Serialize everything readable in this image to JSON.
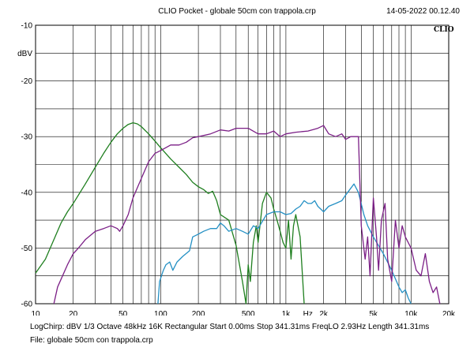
{
  "header": {
    "title": "CLIO Pocket - globale 50cm con trappola.crp",
    "timestamp": "14-05-2022 00.12.40"
  },
  "footer": {
    "params": "LogChirp:  dBV   1/3 Octave   48kHz   16K   Rectangular   Start 0.00ms    Stop 341.31ms    FreqLO 2.93Hz    Length 341.31ms",
    "file": "File: globale 50cm con trappola.crp"
  },
  "chart_data": {
    "type": "line",
    "title": "CLIO Pocket - globale 50cm con trappola.crp",
    "ylabel": "dBV",
    "xlabel": "Hz",
    "x_scale": "log",
    "xlim": [
      10,
      20000
    ],
    "ylim": [
      -60,
      -10
    ],
    "grid": true,
    "brand_label": "CLIO",
    "x_ticks": [
      {
        "value": 10,
        "label": "10"
      },
      {
        "value": 20,
        "label": "20"
      },
      {
        "value": 50,
        "label": "50"
      },
      {
        "value": 100,
        "label": "100"
      },
      {
        "value": 200,
        "label": "200"
      },
      {
        "value": 500,
        "label": "500"
      },
      {
        "value": 1000,
        "label": "1k"
      },
      {
        "value": 1500,
        "label": "Hz"
      },
      {
        "value": 2000,
        "label": "2k"
      },
      {
        "value": 5000,
        "label": "5k"
      },
      {
        "value": 10000,
        "label": "10k"
      },
      {
        "value": 20000,
        "label": "20k"
      }
    ],
    "y_ticks": [
      {
        "value": -10,
        "label": "-10"
      },
      {
        "value": -15,
        "label": "dBV"
      },
      {
        "value": -20,
        "label": "-20"
      },
      {
        "value": -30,
        "label": "-30"
      },
      {
        "value": -40,
        "label": "-40"
      },
      {
        "value": -50,
        "label": "-50"
      },
      {
        "value": -60,
        "label": "-60"
      }
    ],
    "series": [
      {
        "color": "#1f7f1f",
        "points": [
          [
            10,
            -54.5
          ],
          [
            12,
            -52
          ],
          [
            14,
            -48.5
          ],
          [
            16,
            -45.5
          ],
          [
            18,
            -43.5
          ],
          [
            20,
            -42
          ],
          [
            25,
            -38.5
          ],
          [
            30,
            -35.5
          ],
          [
            35,
            -33
          ],
          [
            40,
            -31
          ],
          [
            45,
            -29.5
          ],
          [
            50,
            -28.5
          ],
          [
            55,
            -27.8
          ],
          [
            60,
            -27.5
          ],
          [
            65,
            -27.7
          ],
          [
            70,
            -28.2
          ],
          [
            80,
            -29.5
          ],
          [
            90,
            -30.8
          ],
          [
            100,
            -32
          ],
          [
            120,
            -34
          ],
          [
            140,
            -35.5
          ],
          [
            160,
            -36.8
          ],
          [
            180,
            -38.2
          ],
          [
            200,
            -39
          ],
          [
            220,
            -39.5
          ],
          [
            240,
            -40.2
          ],
          [
            260,
            -39.8
          ],
          [
            280,
            -41.5
          ],
          [
            300,
            -44
          ],
          [
            350,
            -45
          ],
          [
            400,
            -49.5
          ],
          [
            450,
            -56
          ],
          [
            480,
            -60
          ],
          [
            500,
            -53
          ],
          [
            520,
            -56
          ],
          [
            550,
            -49
          ],
          [
            580,
            -46
          ],
          [
            600,
            -49
          ],
          [
            650,
            -42
          ],
          [
            700,
            -40
          ],
          [
            760,
            -41
          ],
          [
            800,
            -43
          ],
          [
            850,
            -45
          ],
          [
            900,
            -47
          ],
          [
            950,
            -49
          ],
          [
            1000,
            -50
          ],
          [
            1050,
            -45
          ],
          [
            1100,
            -52
          ],
          [
            1150,
            -46
          ],
          [
            1200,
            -44
          ],
          [
            1300,
            -48
          ],
          [
            1400,
            -60
          ]
        ]
      },
      {
        "color": "#2490c4",
        "points": [
          [
            95,
            -60
          ],
          [
            98,
            -56
          ],
          [
            105,
            -54
          ],
          [
            110,
            -53
          ],
          [
            118,
            -52.5
          ],
          [
            125,
            -54
          ],
          [
            135,
            -52.5
          ],
          [
            150,
            -51.5
          ],
          [
            170,
            -50.5
          ],
          [
            180,
            -48
          ],
          [
            200,
            -47.5
          ],
          [
            220,
            -47
          ],
          [
            250,
            -46.5
          ],
          [
            280,
            -46.5
          ],
          [
            300,
            -45.5
          ],
          [
            320,
            -46
          ],
          [
            350,
            -47
          ],
          [
            400,
            -46.5
          ],
          [
            450,
            -47
          ],
          [
            500,
            -47.5
          ],
          [
            550,
            -46
          ],
          [
            600,
            -46.5
          ],
          [
            700,
            -44
          ],
          [
            800,
            -43.5
          ],
          [
            900,
            -43.5
          ],
          [
            1000,
            -44
          ],
          [
            1100,
            -43.8
          ],
          [
            1200,
            -43
          ],
          [
            1300,
            -42.5
          ],
          [
            1400,
            -41.5
          ],
          [
            1500,
            -42
          ],
          [
            1600,
            -42
          ],
          [
            1700,
            -41.5
          ],
          [
            1800,
            -42.5
          ],
          [
            1900,
            -43
          ],
          [
            2000,
            -43.5
          ],
          [
            2200,
            -42.5
          ],
          [
            2500,
            -42
          ],
          [
            2800,
            -41.5
          ],
          [
            3000,
            -40.5
          ],
          [
            3500,
            -38.5
          ],
          [
            3800,
            -40
          ],
          [
            4200,
            -44
          ],
          [
            4500,
            -46
          ],
          [
            5000,
            -48
          ],
          [
            6000,
            -51
          ],
          [
            7000,
            -54
          ],
          [
            8000,
            -57
          ],
          [
            8500,
            -58
          ],
          [
            9000,
            -57.5
          ],
          [
            9500,
            -59
          ],
          [
            10000,
            -60
          ]
        ]
      },
      {
        "color": "#7b1f86",
        "points": [
          [
            14,
            -60
          ],
          [
            15,
            -57
          ],
          [
            18,
            -53
          ],
          [
            20,
            -51
          ],
          [
            22,
            -50
          ],
          [
            25,
            -48.5
          ],
          [
            30,
            -47
          ],
          [
            35,
            -46.5
          ],
          [
            40,
            -46
          ],
          [
            45,
            -46.5
          ],
          [
            47,
            -47
          ],
          [
            50,
            -46
          ],
          [
            55,
            -44
          ],
          [
            60,
            -41
          ],
          [
            70,
            -37.5
          ],
          [
            80,
            -34.5
          ],
          [
            90,
            -33
          ],
          [
            100,
            -32.5
          ],
          [
            120,
            -31.5
          ],
          [
            140,
            -31.5
          ],
          [
            160,
            -31
          ],
          [
            180,
            -30.2
          ],
          [
            200,
            -30
          ],
          [
            250,
            -29.5
          ],
          [
            300,
            -28.8
          ],
          [
            350,
            -29
          ],
          [
            400,
            -28.5
          ],
          [
            500,
            -28.5
          ],
          [
            600,
            -29.5
          ],
          [
            700,
            -29.5
          ],
          [
            800,
            -29
          ],
          [
            900,
            -30
          ],
          [
            1000,
            -29.5
          ],
          [
            1200,
            -29.2
          ],
          [
            1500,
            -29
          ],
          [
            1800,
            -28.5
          ],
          [
            2000,
            -28
          ],
          [
            2200,
            -29.5
          ],
          [
            2500,
            -30
          ],
          [
            2800,
            -29.5
          ],
          [
            3000,
            -30.5
          ],
          [
            3300,
            -30
          ],
          [
            3600,
            -30
          ],
          [
            3800,
            -30
          ],
          [
            4000,
            -46
          ],
          [
            4300,
            -52
          ],
          [
            4500,
            -48
          ],
          [
            4700,
            -55
          ],
          [
            5000,
            -41
          ],
          [
            5300,
            -48
          ],
          [
            5500,
            -54
          ],
          [
            5800,
            -45
          ],
          [
            6200,
            -42
          ],
          [
            6500,
            -52
          ],
          [
            7000,
            -56
          ],
          [
            7500,
            -45
          ],
          [
            8000,
            -50
          ],
          [
            8500,
            -46
          ],
          [
            9000,
            -48
          ],
          [
            10000,
            -50
          ],
          [
            11000,
            -54
          ],
          [
            12000,
            -55
          ],
          [
            13000,
            -51
          ],
          [
            14000,
            -56
          ],
          [
            15000,
            -58
          ],
          [
            16000,
            -57
          ],
          [
            17000,
            -60
          ]
        ]
      }
    ]
  }
}
